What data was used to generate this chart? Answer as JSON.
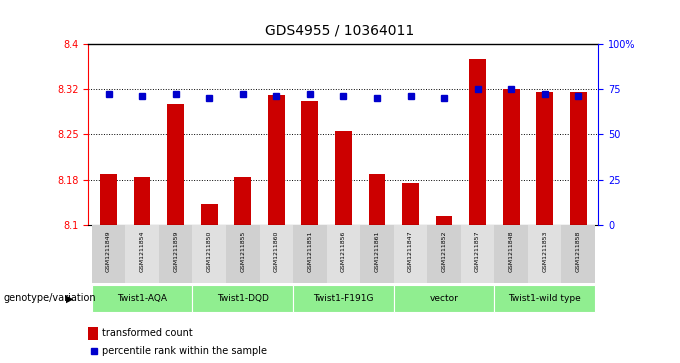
{
  "title": "GDS4955 / 10364011",
  "samples": [
    "GSM1211849",
    "GSM1211854",
    "GSM1211859",
    "GSM1211850",
    "GSM1211855",
    "GSM1211860",
    "GSM1211851",
    "GSM1211856",
    "GSM1211861",
    "GSM1211847",
    "GSM1211852",
    "GSM1211857",
    "GSM1211848",
    "GSM1211853",
    "GSM1211858"
  ],
  "bar_values_all": [
    8.185,
    8.18,
    8.3,
    8.135,
    8.18,
    8.315,
    8.305,
    8.255,
    8.185,
    8.17,
    8.115,
    8.375,
    8.325,
    8.32,
    8.32
  ],
  "percentile_values": [
    72,
    71,
    72,
    70,
    72,
    71,
    72,
    71,
    70,
    71,
    70,
    75,
    75,
    72,
    71
  ],
  "ylim_left": [
    8.1,
    8.4
  ],
  "ylim_right": [
    0,
    100
  ],
  "yticks_left": [
    8.1,
    8.175,
    8.25,
    8.325,
    8.4
  ],
  "yticks_right": [
    0,
    25,
    50,
    75,
    100
  ],
  "ytick_labels_right": [
    "0",
    "25",
    "50",
    "75",
    "100%"
  ],
  "groups": [
    {
      "label": "Twist1-AQA",
      "start": 0,
      "end": 3
    },
    {
      "label": "Twist1-DQD",
      "start": 3,
      "end": 6
    },
    {
      "label": "Twist1-F191G",
      "start": 6,
      "end": 9
    },
    {
      "label": "vector",
      "start": 9,
      "end": 12
    },
    {
      "label": "Twist1-wild type",
      "start": 12,
      "end": 15
    }
  ],
  "bar_color": "#cc0000",
  "percentile_color": "#0000cc",
  "group_color": "#90ee90",
  "label_transformed": "transformed count",
  "label_percentile": "percentile rank within the sample",
  "genotype_label": "genotype/variation"
}
